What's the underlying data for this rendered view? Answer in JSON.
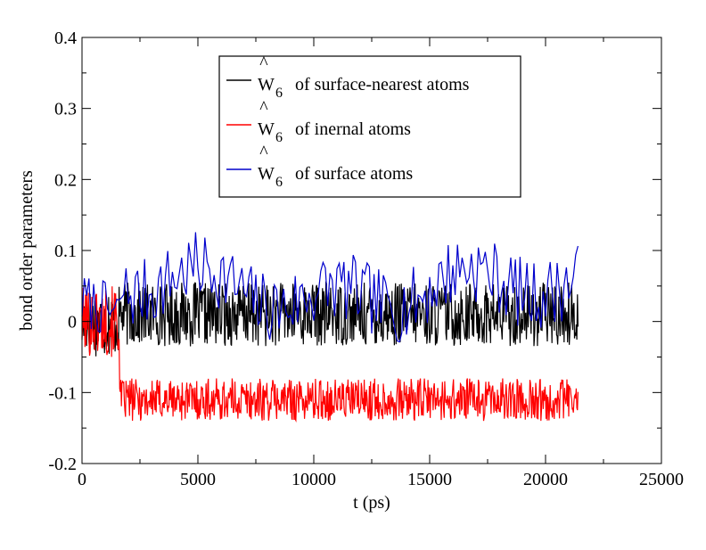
{
  "chart_data": {
    "type": "line",
    "title": "",
    "xlabel": "t (ps)",
    "ylabel": "bond order parameters",
    "xlim": [
      0,
      25000
    ],
    "ylim": [
      -0.2,
      0.4
    ],
    "x_ticks": [
      0,
      5000,
      10000,
      15000,
      20000,
      25000
    ],
    "x_tick_labels": [
      "0",
      "5000",
      "10000",
      "15000",
      "20000",
      "25000"
    ],
    "y_ticks": [
      -0.2,
      -0.1,
      0,
      0.1,
      0.2,
      0.3,
      0.4
    ],
    "y_tick_labels": [
      "-0.2",
      "-0.1",
      "0",
      "0.1",
      "0.2",
      "0.3",
      "0.4"
    ],
    "grid": false,
    "legend_position": "top-center",
    "series": [
      {
        "legend_symbol": "W",
        "legend_hat": "^",
        "legend_subscript": "6",
        "legend_text": "of surface-nearest atoms",
        "color": "#000000",
        "x_start": 0,
        "x_end": 21400,
        "step": 25,
        "mean": 0.01,
        "amplitude": 0.045,
        "early_segment": {
          "x_end": 1600,
          "mean": 0.0,
          "amplitude": 0.05
        }
      },
      {
        "legend_symbol": "W",
        "legend_hat": "^",
        "legend_subscript": "6",
        "legend_text": "of inernal atoms",
        "color": "#ff0000",
        "x_start": 0,
        "x_end": 21400,
        "step": 25,
        "mean": -0.11,
        "amplitude": 0.03,
        "early_segment": {
          "x_end": 1600,
          "mean": 0.0,
          "amplitude": 0.05
        }
      },
      {
        "legend_symbol": "W",
        "legend_hat": "^",
        "legend_subscript": "6",
        "legend_text": "of surface atoms",
        "color": "#0000cc",
        "x_start": 0,
        "x_end": 21400,
        "step": 100,
        "mean": 0.045,
        "amplitude": 0.05,
        "early_segment": {
          "x_end": 1600,
          "mean": 0.01,
          "amplitude": 0.04
        }
      }
    ]
  }
}
